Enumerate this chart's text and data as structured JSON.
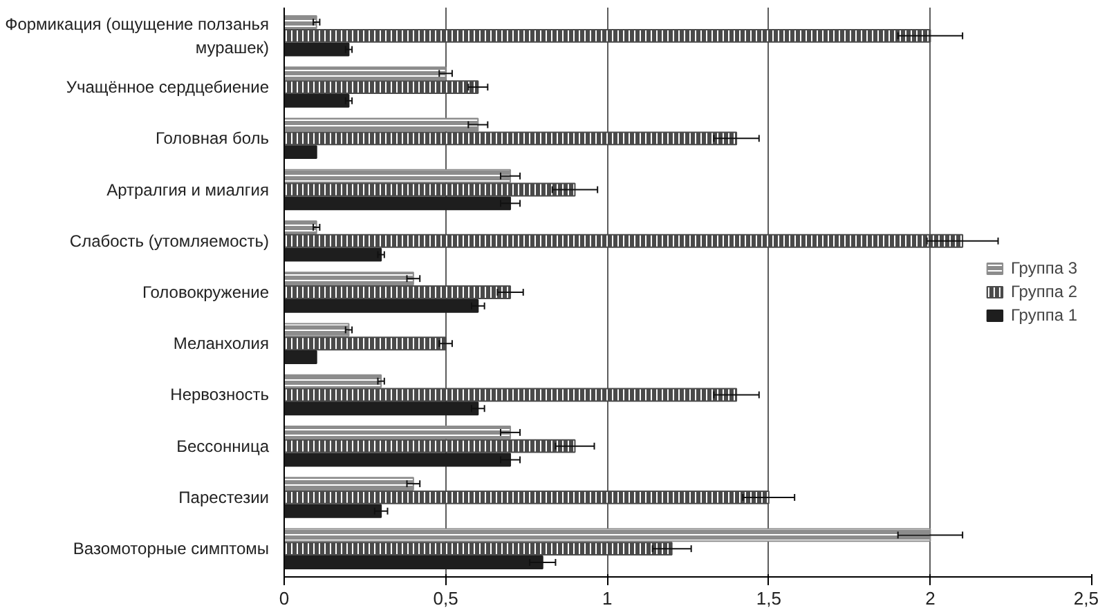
{
  "chart_data": {
    "type": "bar",
    "orientation": "horizontal",
    "categories": [
      "Формикация (ощущение ползанья мурашек)",
      "Учащённое сердцебиение",
      "Головная боль",
      "Артралгия и миалгия",
      "Слабость (утомляемость)",
      "Головокружение",
      "Меланхолия",
      "Нервозность",
      "Бессонница",
      "Парестезии",
      "Вазомоторные симптомы"
    ],
    "series": [
      {
        "name": "Группа 3",
        "color": "#8c8c8c",
        "values": [
          0.1,
          0.5,
          0.6,
          0.7,
          0.1,
          0.4,
          0.2,
          0.3,
          0.7,
          0.4,
          2.0
        ],
        "errors": [
          0.01,
          0.02,
          0.03,
          0.03,
          0.01,
          0.02,
          0.01,
          0.01,
          0.03,
          0.02,
          0.1
        ]
      },
      {
        "name": "Группа 2",
        "color": "#4a4a4a",
        "values": [
          2.0,
          0.6,
          1.4,
          0.9,
          2.1,
          0.7,
          0.5,
          1.4,
          0.9,
          1.5,
          1.2
        ],
        "errors": [
          0.1,
          0.03,
          0.07,
          0.07,
          0.11,
          0.04,
          0.02,
          0.07,
          0.06,
          0.08,
          0.06
        ]
      },
      {
        "name": "Группа 1",
        "color": "#1e1e1e",
        "values": [
          0.2,
          0.2,
          0.1,
          0.7,
          0.3,
          0.6,
          0.1,
          0.6,
          0.7,
          0.3,
          0.8
        ],
        "errors": [
          0.01,
          0.01,
          null,
          0.03,
          0.01,
          0.02,
          null,
          0.02,
          0.03,
          0.02,
          0.04
        ]
      }
    ],
    "xlim": [
      0,
      2.5
    ],
    "xticks": [
      0,
      {
        "value": 0.5,
        "label": "0,5"
      },
      1,
      {
        "value": 1.5,
        "label": "1,5"
      },
      2,
      {
        "value": 2.5,
        "label": "2,5"
      }
    ],
    "grid": "x",
    "legend": "right"
  }
}
